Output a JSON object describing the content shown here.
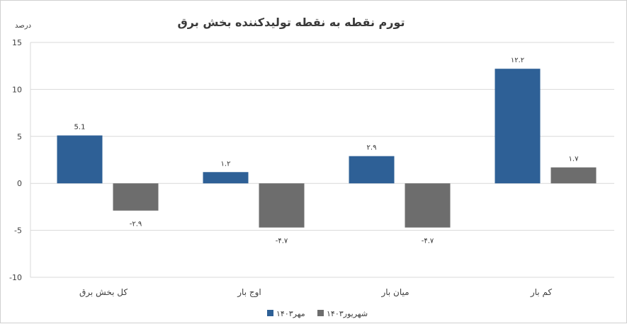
{
  "chart_data": {
    "type": "bar",
    "title": "تورم نقطه به نقطه تولیدکننده بخش برق",
    "ylabel": "درصد",
    "categories": [
      "کل بخش برق",
      "اوج بار",
      "میان بار",
      "کم بار"
    ],
    "series": [
      {
        "name": "مهر۱۴۰۳",
        "color": "#2e6096",
        "values": [
          5.1,
          1.2,
          2.9,
          12.2
        ],
        "labels": [
          "5.1",
          "۱.۲",
          "۲.۹",
          "۱۲.۲"
        ]
      },
      {
        "name": "شهریور۱۴۰۳",
        "color": "#6d6d6d",
        "values": [
          -2.9,
          -4.7,
          -4.7,
          1.7
        ],
        "labels": [
          "-۲.۹",
          "-۴.۷",
          "-۴.۷",
          "۱.۷"
        ]
      }
    ],
    "ylim": [
      -10,
      15
    ],
    "yticks": [
      15,
      10,
      5,
      0,
      -5,
      -10
    ],
    "ytick_labels": [
      "15",
      "10",
      "5",
      "0",
      "-5",
      "-10"
    ],
    "grid": true,
    "legend_position": "bottom-center"
  }
}
